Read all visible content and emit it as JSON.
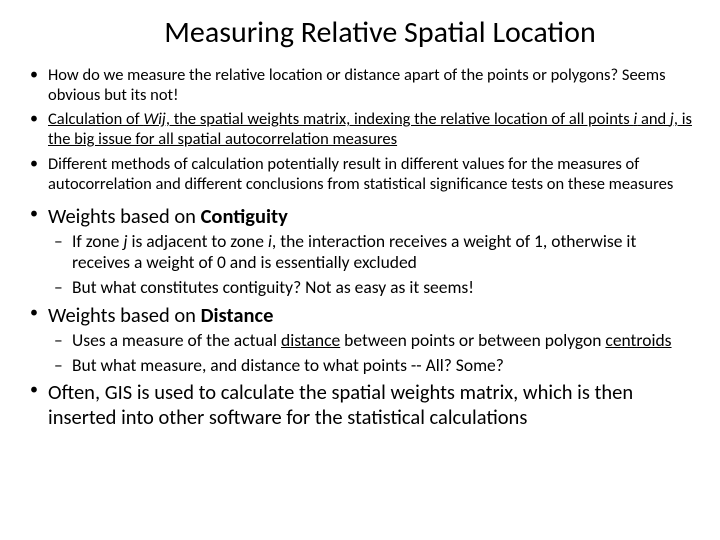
{
  "title_fontsize": 30,
  "small_fontsize": 16.5,
  "large_fontsize": 20.5,
  "sub_fontsize": 17.5,
  "colors": {
    "background": "#ffffff",
    "text": "#000000"
  },
  "title": "Measuring Relative Spatial Location",
  "b1": "How do we measure the relative location or distance apart of the points or polygons? Seems obvious but its not!",
  "b2a": "Calculation of  ",
  "b2b": "Wij",
  "b2c": ", the spatial weights matrix, ",
  "b2d": " indexing the relative location of  all  points ",
  "b2e": "i",
  "b2f": " and ",
  "b2g": "j",
  "b2h": ", is the big issue for all spatial autocorrelation measures",
  "b3": "Different methods of calculation potentially result in different values for the measures of autocorrelation and different conclusions from statistical significance tests on these measures",
  "b4a": "Weights based on ",
  "b4b": "Contiguity",
  "b4_1a": "If zone ",
  "b4_1b": "j",
  "b4_1c": " is adjacent to zone ",
  "b4_1d": "i",
  "b4_1e": ", the interaction receives a weight of 1, otherwise it receives a weight of 0 and is essentially excluded",
  "b4_2": "But what constitutes contiguity? Not as easy as it seems!",
  "b5a": "Weights based on ",
  "b5b": "Distance",
  "b5_1a": "Uses a measure of the actual ",
  "b5_1b": "distance",
  "b5_1c": " between points or between polygon ",
  "b5_1d": "centroids",
  "b5_2": "But what measure,  and distance to what points -- All? Some?",
  "b6": "Often, GIS is used to calculate the spatial weights matrix, which is then inserted into other software for the  statistical calculations"
}
